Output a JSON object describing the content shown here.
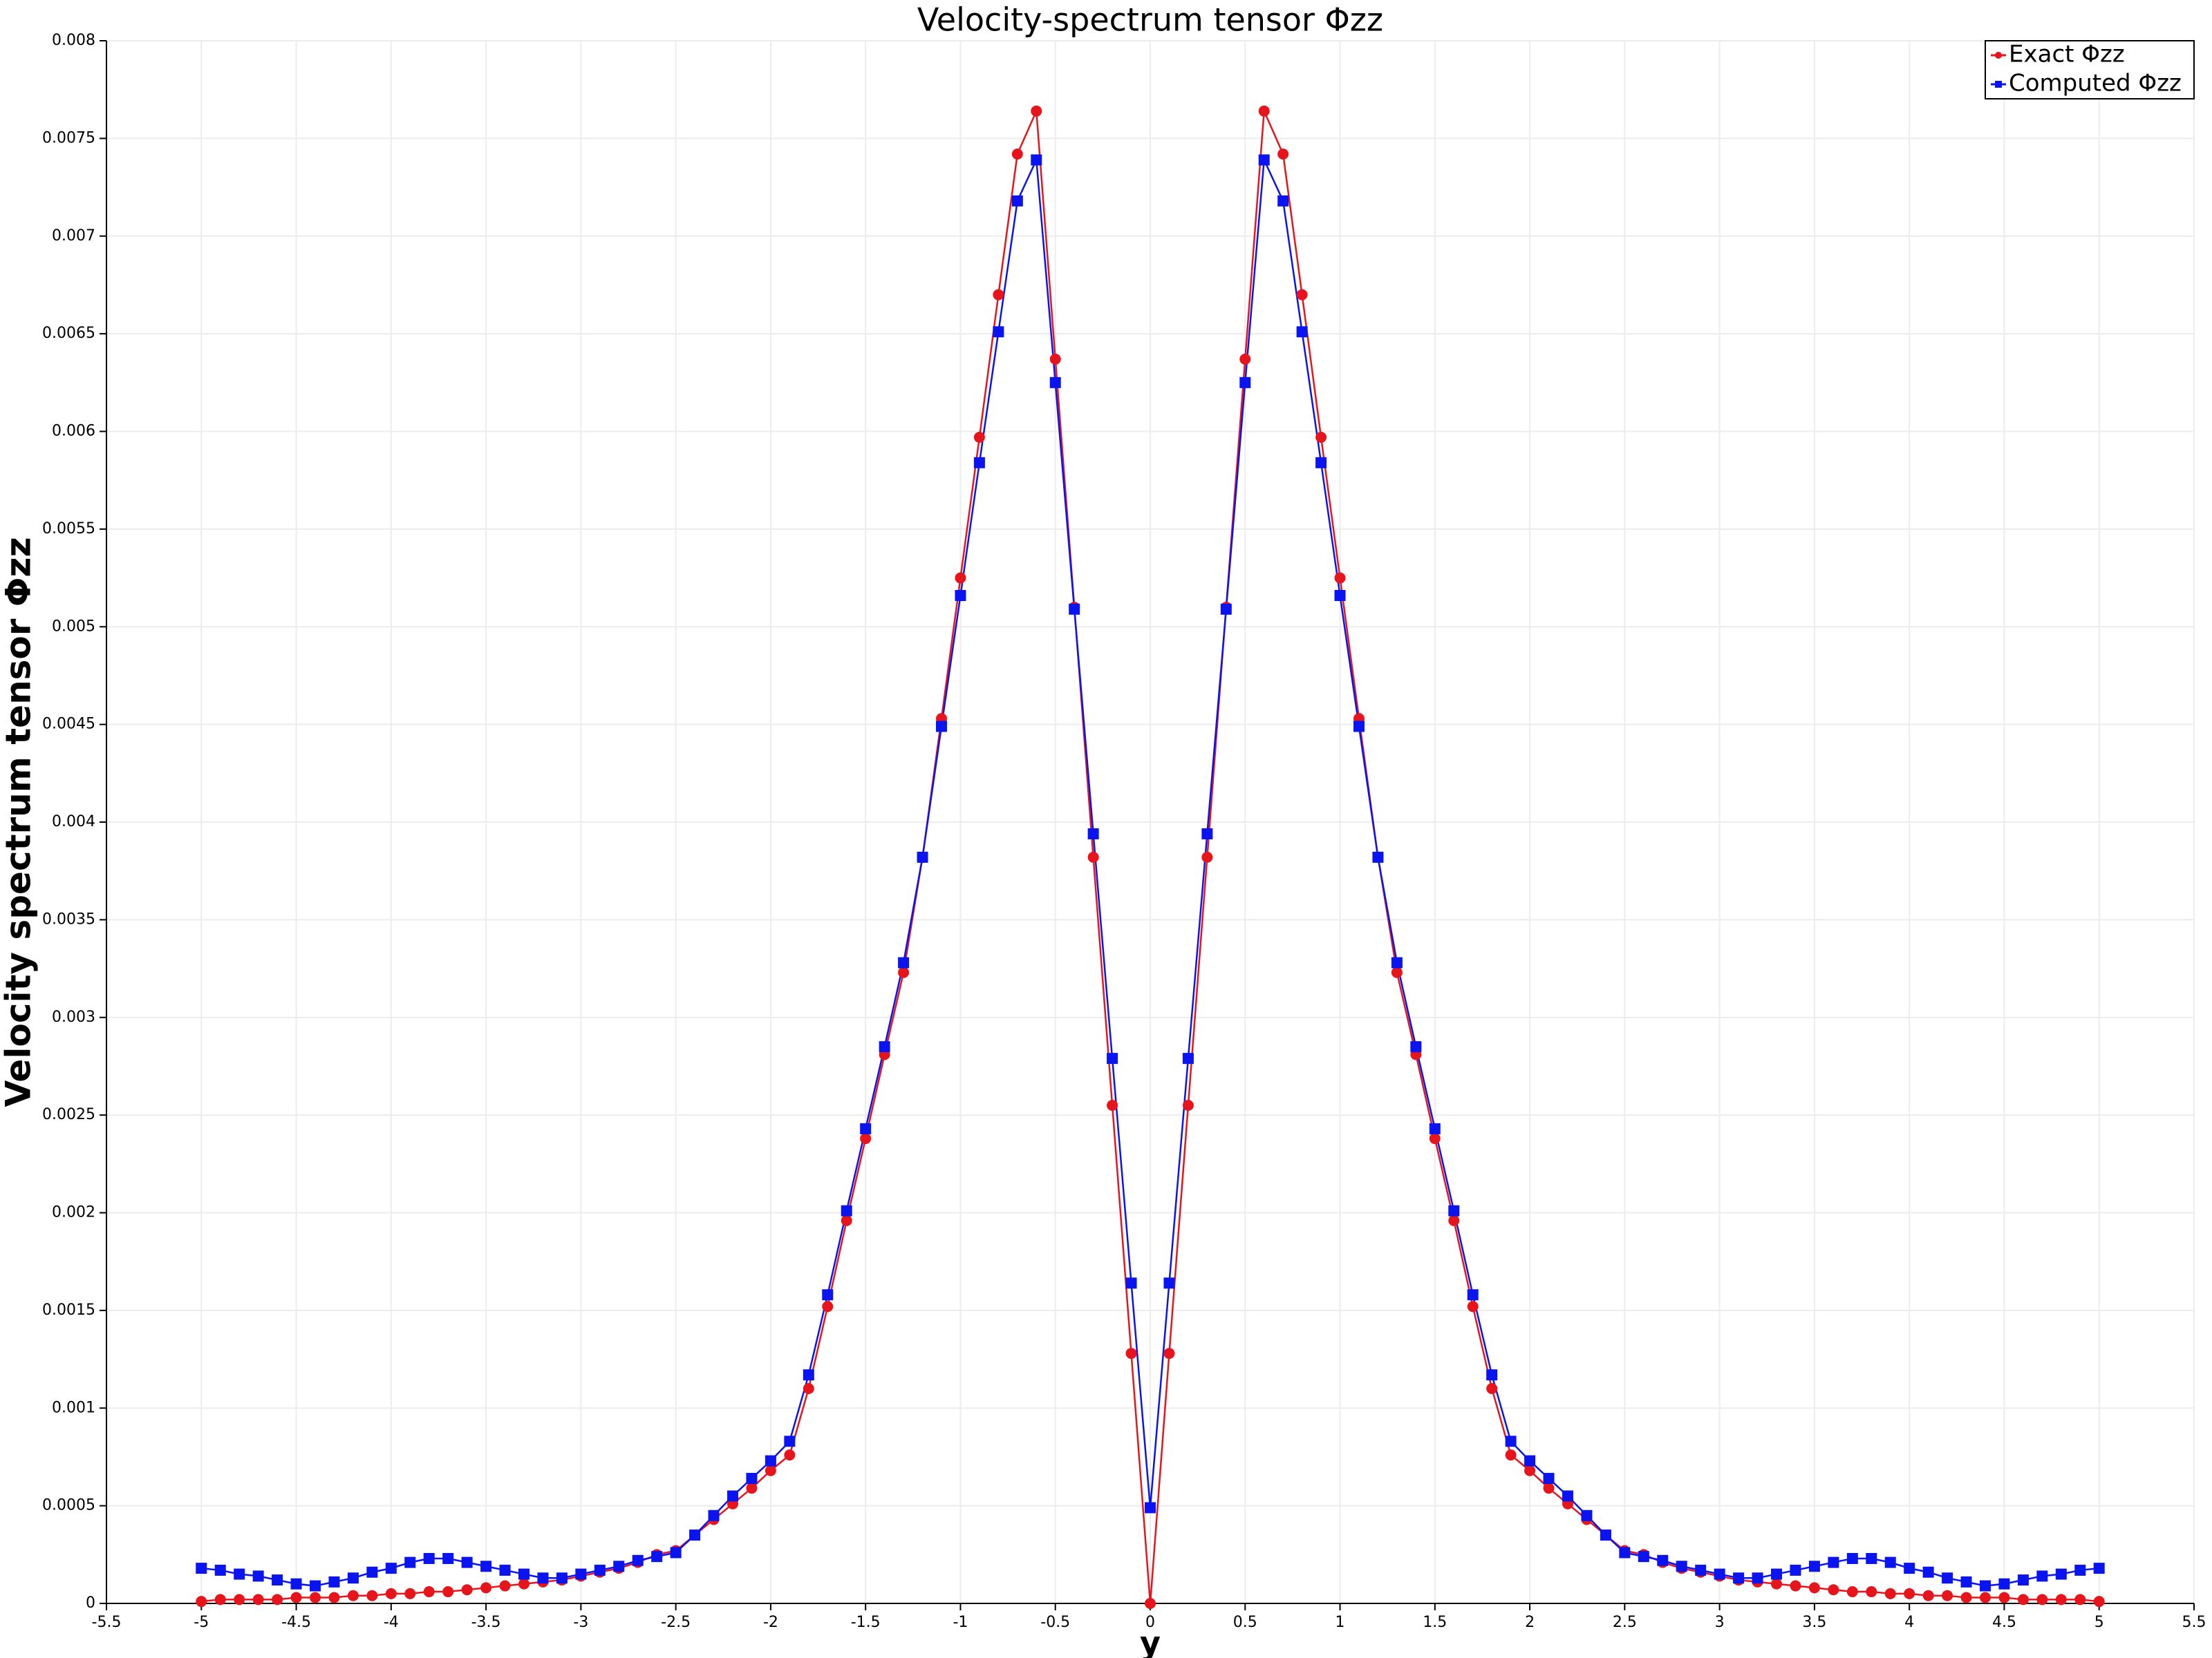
{
  "chart_data": {
    "type": "line",
    "title": "Velocity-spectrum tensor Φzz",
    "x_label": "y",
    "y_label": "Velocity spectrum tensor Φzz",
    "x": [
      -5,
      -4.9,
      -4.8,
      -4.7,
      -4.6,
      -4.5,
      -4.4,
      -4.3,
      -4.2,
      -4.1,
      -4,
      -3.9,
      -3.8,
      -3.7,
      -3.6,
      -3.5,
      -3.4,
      -3.3,
      -3.2,
      -3.1,
      -3,
      -2.9,
      -2.8,
      -2.7,
      -2.6,
      -2.5,
      -2.4,
      -2.3,
      -2.2,
      -2.1,
      -2,
      -1.9,
      -1.8,
      -1.7,
      -1.6,
      -1.5,
      -1.4,
      -1.3,
      -1.2,
      -1.1,
      -1,
      -0.9,
      -0.8,
      -0.7,
      -0.6,
      -0.5,
      -0.4,
      -0.3,
      -0.2,
      -0.1,
      0,
      0.1,
      0.2,
      0.3,
      0.4,
      0.5,
      0.6,
      0.7,
      0.8,
      0.9,
      1,
      1.1,
      1.2,
      1.3,
      1.4,
      1.5,
      1.6,
      1.7,
      1.8,
      1.9,
      2,
      2.1,
      2.2,
      2.3,
      2.4,
      2.5,
      2.6,
      2.7,
      2.8,
      2.9,
      3,
      3.1,
      3.2,
      3.3,
      3.4,
      3.5,
      3.6,
      3.7,
      3.8,
      3.9,
      4,
      4.1,
      4.2,
      4.3,
      4.4,
      4.5,
      4.6,
      4.7,
      4.8,
      4.9,
      5
    ],
    "series": [
      {
        "name": "Exact Φzz",
        "color": "#e8141c",
        "marker": "circle",
        "values": [
          1e-05,
          2e-05,
          2e-05,
          2e-05,
          2e-05,
          3e-05,
          3e-05,
          3e-05,
          4e-05,
          4e-05,
          5e-05,
          5e-05,
          6e-05,
          6e-05,
          7e-05,
          8e-05,
          9e-05,
          0.0001,
          0.00011,
          0.00012,
          0.00014,
          0.00016,
          0.00018,
          0.00021,
          0.00025,
          0.00027,
          0.00035,
          0.00043,
          0.00051,
          0.00059,
          0.00068,
          0.00076,
          0.0011,
          0.00152,
          0.00196,
          0.00238,
          0.00281,
          0.00323,
          0.00382,
          0.00453,
          0.00525,
          0.00597,
          0.0067,
          0.00742,
          0.00764,
          0.00637,
          0.0051,
          0.00382,
          0.00255,
          0.00128,
          0,
          0.00128,
          0.00255,
          0.00382,
          0.0051,
          0.00637,
          0.00764,
          0.00742,
          0.0067,
          0.00597,
          0.00525,
          0.00453,
          0.00382,
          0.00323,
          0.00281,
          0.00238,
          0.00196,
          0.00152,
          0.0011,
          0.00076,
          0.00068,
          0.00059,
          0.00051,
          0.00043,
          0.00035,
          0.00027,
          0.00025,
          0.00021,
          0.00018,
          0.00016,
          0.00014,
          0.00012,
          0.00011,
          0.0001,
          9e-05,
          8e-05,
          7e-05,
          6e-05,
          6e-05,
          5e-05,
          5e-05,
          4e-05,
          4e-05,
          3e-05,
          3e-05,
          3e-05,
          2e-05,
          2e-05,
          2e-05,
          2e-05,
          1e-05
        ]
      },
      {
        "name": "Computed Φzz",
        "color": "#0a14f0",
        "marker": "square",
        "values": [
          0.00018,
          0.00017,
          0.00015,
          0.00014,
          0.00012,
          0.0001,
          9e-05,
          0.00011,
          0.00013,
          0.00016,
          0.00018,
          0.00021,
          0.00023,
          0.00023,
          0.00021,
          0.00019,
          0.00017,
          0.00015,
          0.00013,
          0.00013,
          0.00015,
          0.00017,
          0.00019,
          0.00022,
          0.00024,
          0.00026,
          0.00035,
          0.00045,
          0.00055,
          0.00064,
          0.00073,
          0.00083,
          0.00117,
          0.00158,
          0.00201,
          0.00243,
          0.00285,
          0.00328,
          0.00382,
          0.00449,
          0.00516,
          0.00584,
          0.00651,
          0.00718,
          0.00739,
          0.00625,
          0.00509,
          0.00394,
          0.00279,
          0.00164,
          0.00049,
          0.00164,
          0.00279,
          0.00394,
          0.00509,
          0.00625,
          0.00739,
          0.00718,
          0.00651,
          0.00584,
          0.00516,
          0.00449,
          0.00382,
          0.00328,
          0.00285,
          0.00243,
          0.00201,
          0.00158,
          0.00117,
          0.00083,
          0.00073,
          0.00064,
          0.00055,
          0.00045,
          0.00035,
          0.00026,
          0.00024,
          0.00022,
          0.00019,
          0.00017,
          0.00015,
          0.00013,
          0.00013,
          0.00015,
          0.00017,
          0.00019,
          0.00021,
          0.00023,
          0.00023,
          0.00021,
          0.00018,
          0.00016,
          0.00013,
          0.00011,
          9e-05,
          0.0001,
          0.00012,
          0.00014,
          0.00015,
          0.00017,
          0.00018
        ]
      }
    ],
    "xlim": [
      -5.5,
      5.5
    ],
    "xticks": [
      -5.5,
      -5,
      -4.5,
      -4,
      -3.5,
      -3,
      -2.5,
      -2,
      -1.5,
      -1,
      -0.5,
      0,
      0.5,
      1,
      1.5,
      2,
      2.5,
      3,
      3.5,
      4,
      4.5,
      5,
      5.5
    ],
    "ylim": [
      0,
      0.008
    ],
    "yticks": [
      0,
      0.0005,
      0.001,
      0.0015,
      0.002,
      0.0025,
      0.003,
      0.0035,
      0.004,
      0.0045,
      0.005,
      0.0055,
      0.006,
      0.0065,
      0.007,
      0.0075,
      0.008
    ],
    "grid": true,
    "legend_position": "upper right"
  }
}
